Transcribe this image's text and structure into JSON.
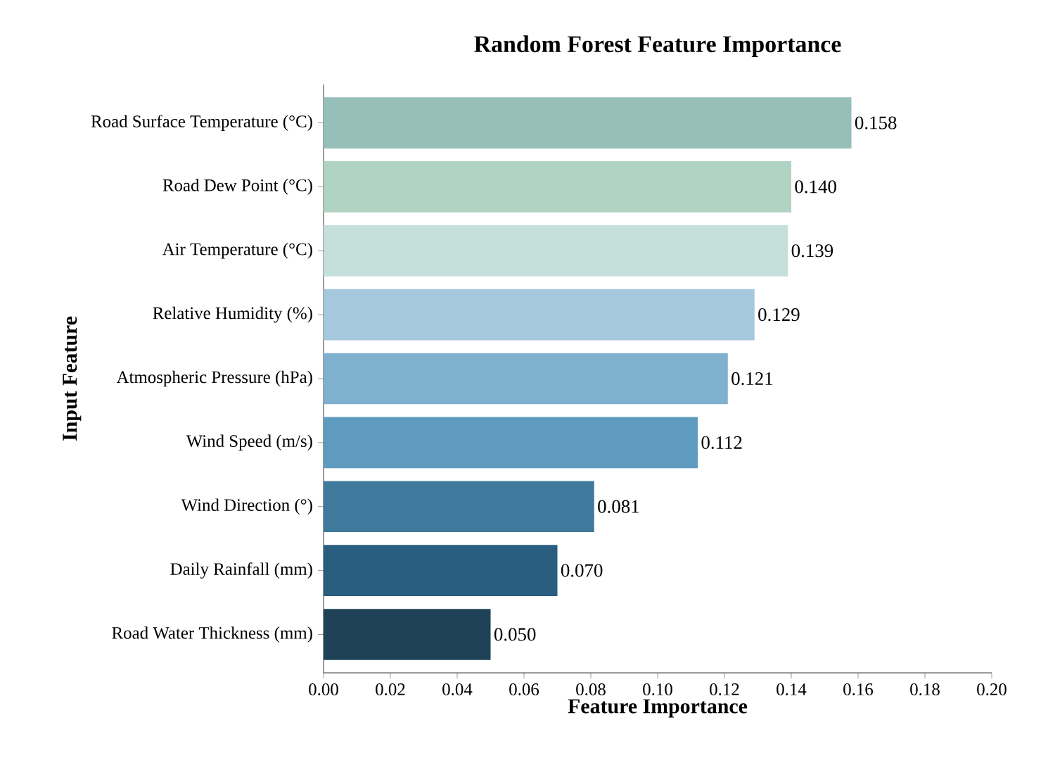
{
  "chart_data": {
    "type": "bar",
    "orientation": "horizontal",
    "title": "Random Forest Feature Importance",
    "xlabel": "Feature Importance",
    "ylabel": "Input Feature",
    "categories": [
      "Road Surface Temperature (°C)",
      "Road Dew Point (°C)",
      "Air Temperature (°C)",
      "Relative Humidity (%)",
      "Atmospheric Pressure (hPa)",
      "Wind Speed (m/s)",
      "Wind Direction (°)",
      "Daily Rainfall (mm)",
      "Road Water Thickness (mm)"
    ],
    "values": [
      0.158,
      0.14,
      0.139,
      0.129,
      0.121,
      0.112,
      0.081,
      0.07,
      0.05
    ],
    "value_labels": [
      "0.158",
      "0.140",
      "0.139",
      "0.129",
      "0.121",
      "0.112",
      "0.081",
      "0.070",
      "0.050"
    ],
    "colors": [
      "#97bfb9",
      "#b0d3c4",
      "#c5e0da",
      "#a6c8de",
      "#7fb1cf",
      "#5f9bbf",
      "#3f7a9c",
      "#295e80",
      "#1f4257"
    ],
    "xlim": [
      0,
      0.2
    ],
    "xticks": [
      {
        "value": 0,
        "label": "0.00"
      },
      {
        "value": 0.02,
        "label": "0.02"
      },
      {
        "value": 0.04,
        "label": "0.04"
      },
      {
        "value": 0.06,
        "label": "0.06"
      },
      {
        "value": 0.08,
        "label": "0.08"
      },
      {
        "value": 0.1,
        "label": "0.10"
      },
      {
        "value": 0.12,
        "label": "0.12"
      },
      {
        "value": 0.14,
        "label": "0.14"
      },
      {
        "value": 0.16,
        "label": "0.16"
      },
      {
        "value": 0.18,
        "label": "0.18"
      },
      {
        "value": 0.2,
        "label": "0.20"
      }
    ]
  }
}
